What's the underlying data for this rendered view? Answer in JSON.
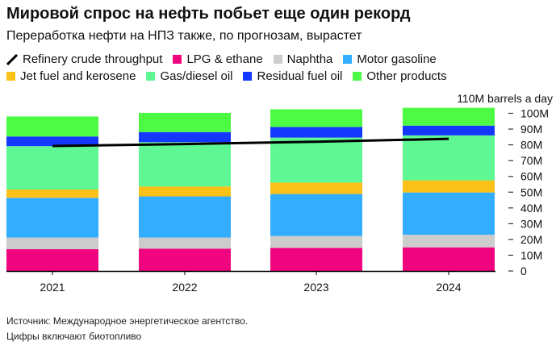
{
  "title": "Мировой спрос на нефть побьет еще один рекорд",
  "subtitle": "Переработка нефти на НПЗ также, по прогнозам, вырастет",
  "source": "Источник: Международное энергетическое агентство.",
  "note": "Цифры включают биотопливо",
  "chart_data": {
    "type": "bar",
    "stacked": true,
    "categories": [
      "2021",
      "2022",
      "2023",
      "2024"
    ],
    "yunit_label": "110M barrels a day",
    "ylim": [
      0,
      110
    ],
    "yticks": [
      0,
      10,
      20,
      30,
      40,
      50,
      60,
      70,
      80,
      90,
      100
    ],
    "ytick_labels": [
      "0",
      "10M",
      "20M",
      "30M",
      "40M",
      "50M",
      "60M",
      "70M",
      "80M",
      "90M",
      "100M"
    ],
    "series": [
      {
        "name": "LPG & ethane",
        "color": "#f0047f",
        "values": [
          13.8,
          14.2,
          14.7,
          15.0
        ]
      },
      {
        "name": "Naphtha",
        "color": "#cccccc",
        "values": [
          7.4,
          7.0,
          7.5,
          8.0
        ]
      },
      {
        "name": "Motor gasoline",
        "color": "#33adff",
        "values": [
          25.2,
          26.1,
          26.6,
          26.8
        ]
      },
      {
        "name": "Jet fuel and kerosene",
        "color": "#fac218",
        "values": [
          5.3,
          6.3,
          7.3,
          7.7
        ]
      },
      {
        "name": "Gas/diesel oil",
        "color": "#5ff794",
        "values": [
          27.5,
          28.1,
          28.5,
          28.5
        ]
      },
      {
        "name": "Residual fuel oil",
        "color": "#1438ff",
        "values": [
          6.1,
          6.4,
          6.7,
          6.2
        ]
      },
      {
        "name": "Other products",
        "color": "#4dfa44",
        "values": [
          12.7,
          12.2,
          11.3,
          11.3
        ]
      }
    ],
    "line": {
      "name": "Refinery crude throughput",
      "color": "#000000",
      "values": [
        79.3,
        80.5,
        82.0,
        83.8
      ]
    },
    "legend_position": "top",
    "grid": false
  }
}
